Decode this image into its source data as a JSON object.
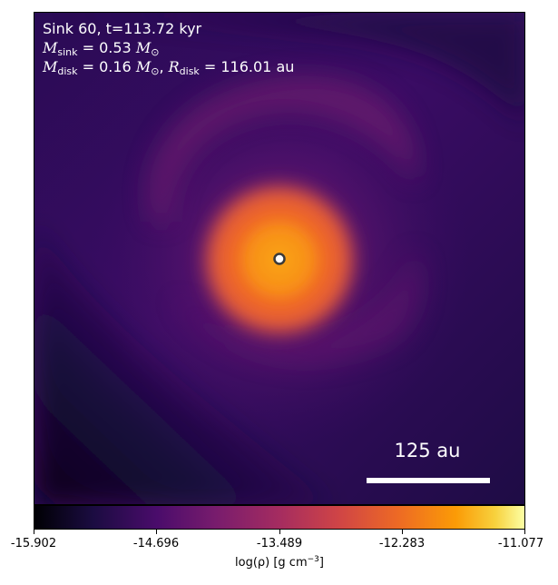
{
  "annotation": {
    "sink_line": "Sink 60, t=113.72 kyr",
    "msink_symbol": "M",
    "msink_sub": "sink",
    "msink_value": " = 0.53 ",
    "msun_symbol": "M",
    "msun_sub": "⊙",
    "mdisk_symbol": "M",
    "mdisk_sub": "disk",
    "mdisk_value": " = 0.16 ",
    "mdisk_sun_symbol": "M",
    "mdisk_sun_sub": "⊙",
    "separator": ", ",
    "rdisk_symbol": "R",
    "rdisk_sub": "disk",
    "rdisk_value": " = 116.01 au"
  },
  "scale_bar": {
    "label": "125 au"
  },
  "colorbar": {
    "ticks": [
      "-15.902",
      "-14.696",
      "-13.489",
      "-12.283",
      "-11.077"
    ],
    "label_main": "log(ρ) [g cm",
    "label_sup": "−3",
    "label_end": "]",
    "colormap": "inferno"
  }
}
